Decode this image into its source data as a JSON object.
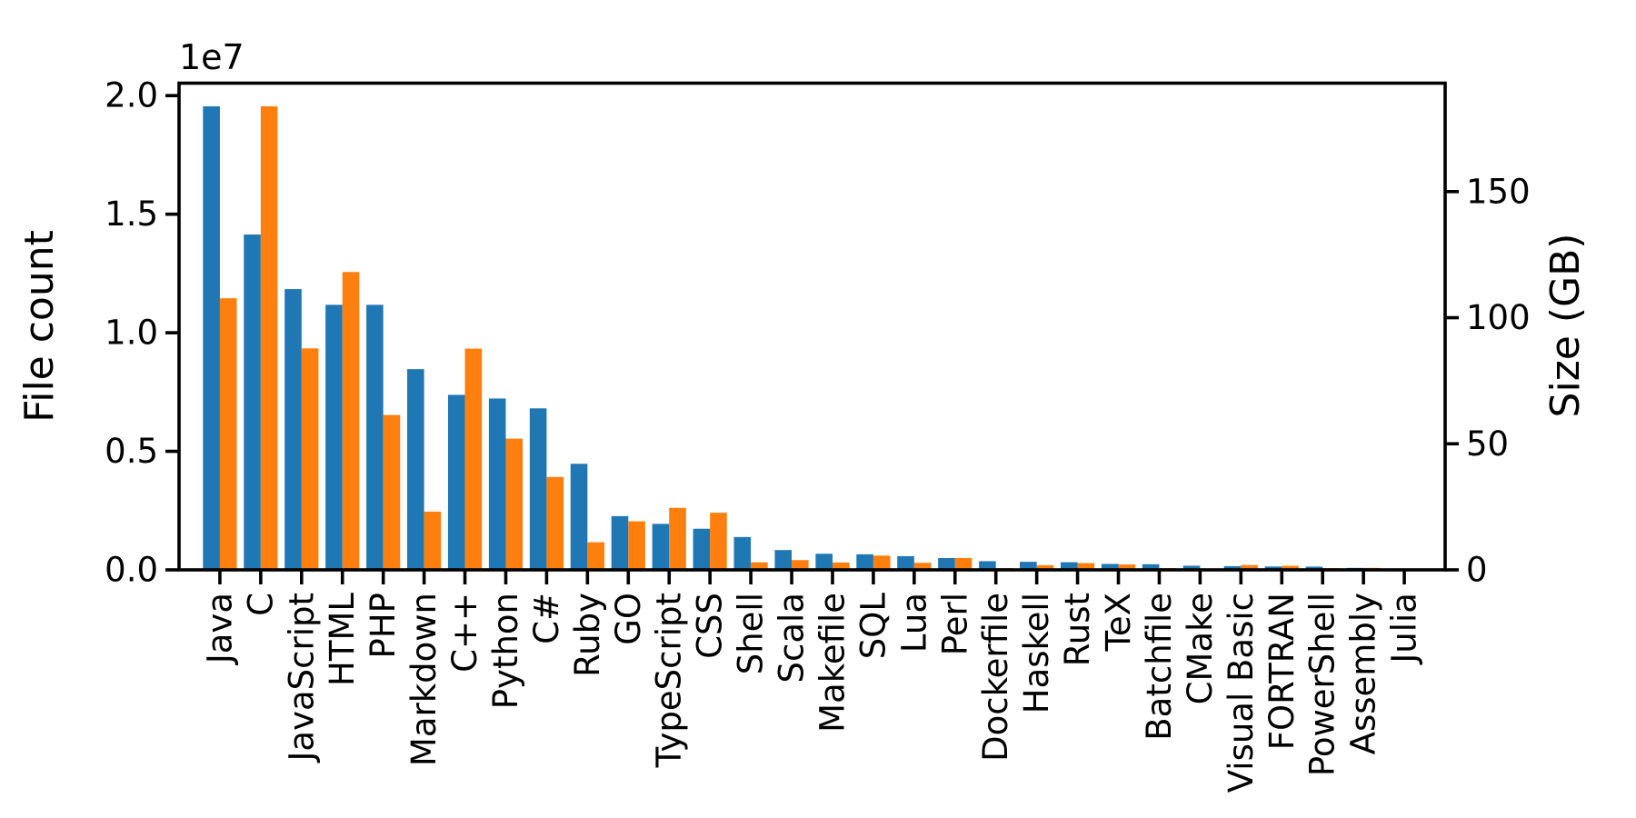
{
  "figure": {
    "background": "#ffffff"
  },
  "chart_data": {
    "type": "bar",
    "title": "",
    "xlabel": "",
    "grid": false,
    "legend": "none",
    "x_axis": {
      "tick_rotation": 90
    },
    "categories": [
      "Java",
      "C",
      "JavaScript",
      "HTML",
      "PHP",
      "Markdown",
      "C++",
      "Python",
      "C#",
      "Ruby",
      "GO",
      "TypeScript",
      "CSS",
      "Shell",
      "Scala",
      "Makefile",
      "SQL",
      "Lua",
      "Perl",
      "Dockerfile",
      "Haskell",
      "Rust",
      "TeX",
      "Batchfile",
      "CMake",
      "Visual Basic",
      "FORTRAN",
      "PowerShell",
      "Assembly",
      "Julia"
    ],
    "series": [
      {
        "name": "File count",
        "axis": "left",
        "color": "#1f77b4",
        "values": [
          19548190,
          14143113,
          11839883,
          11178557,
          11177610,
          8464626,
          7380520,
          7226626,
          6811652,
          4473331,
          2265436,
          1940406,
          1734406,
          1385648,
          835755,
          679430,
          656671,
          578554,
          497949,
          366505,
          340623,
          322431,
          251015,
          236945,
          175282,
          155652,
          142038,
          136846,
          82905,
          58317
        ]
      },
      {
        "name": "Size (GB)",
        "axis": "right",
        "color": "#ff7f0e",
        "values": [
          107.7,
          183.83,
          87.82,
          118.12,
          61.41,
          23.09,
          87.73,
          52.03,
          36.83,
          10.95,
          19.28,
          24.59,
          22.67,
          3.01,
          3.87,
          2.92,
          5.67,
          2.81,
          4.7,
          0.71,
          1.85,
          2.68,
          2.15,
          0.7,
          0.54,
          1.91,
          1.62,
          0.69,
          0.78,
          0.29
        ]
      }
    ],
    "left_axis": {
      "label": "File count",
      "label_color": "#1f77b4",
      "offset_text": "1e7",
      "tick_values": [
        0,
        5000000,
        10000000,
        15000000,
        20000000
      ],
      "tick_labels": [
        "0.0",
        "0.5",
        "1.0",
        "1.5",
        "2.0"
      ],
      "range": [
        0,
        20525600
      ]
    },
    "right_axis": {
      "label": "Size (GB)",
      "label_color": "#ff7f0e",
      "tick_values": [
        0,
        50,
        100,
        150
      ],
      "tick_labels": [
        "0",
        "50",
        "100",
        "150"
      ],
      "range": [
        0,
        193.0
      ]
    }
  }
}
